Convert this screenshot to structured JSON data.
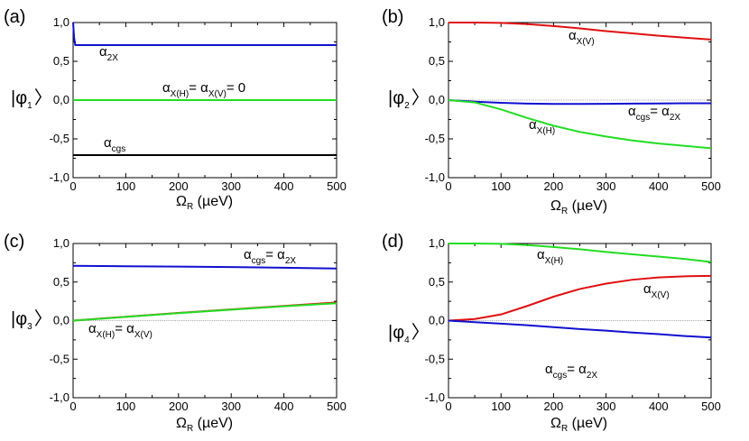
{
  "figure": {
    "panels": [
      {
        "panel_label": "(a)",
        "ylabel": {
          "prefix": "|φ",
          "sub": "1",
          "suffix": "〉"
        },
        "xlabel": {
          "prefix": "Ω",
          "sub": "R",
          "suffix": " (µeV)"
        },
        "annotations": [
          {
            "parts": [
              [
                "α",
                ""
              ],
              [
                "2X",
                "sub"
              ]
            ]
          },
          {
            "parts": [
              [
                "α",
                ""
              ],
              [
                "X(H)",
                "sub"
              ],
              [
                "= α",
                ""
              ],
              [
                "X(V)",
                "sub"
              ],
              [
                "= 0",
                ""
              ]
            ]
          },
          {
            "parts": [
              [
                "α",
                ""
              ],
              [
                "cgs",
                "sub"
              ]
            ]
          }
        ]
      },
      {
        "panel_label": "(b)",
        "ylabel": {
          "prefix": "|φ",
          "sub": "2",
          "suffix": "〉"
        },
        "xlabel": {
          "prefix": "Ω",
          "sub": "R",
          "suffix": " (µeV)"
        },
        "annotations": [
          {
            "parts": [
              [
                "α",
                ""
              ],
              [
                "X(V)",
                "sub"
              ]
            ]
          },
          {
            "parts": [
              [
                "α",
                ""
              ],
              [
                "cgs",
                "sub"
              ],
              [
                "= α",
                ""
              ],
              [
                "2X",
                "sub"
              ]
            ]
          },
          {
            "parts": [
              [
                "α",
                ""
              ],
              [
                "X(H)",
                "sub"
              ]
            ]
          }
        ]
      },
      {
        "panel_label": "(c)",
        "ylabel": {
          "prefix": "|φ",
          "sub": "3",
          "suffix": "〉"
        },
        "xlabel": {
          "prefix": "Ω",
          "sub": "R",
          "suffix": " (µeV)"
        },
        "annotations": [
          {
            "parts": [
              [
                "α",
                ""
              ],
              [
                "cgs",
                "sub"
              ],
              [
                "= α",
                ""
              ],
              [
                "2X",
                "sub"
              ]
            ]
          },
          {
            "parts": [
              [
                "α",
                ""
              ],
              [
                "X(H)",
                "sub"
              ],
              [
                "= α",
                ""
              ],
              [
                "X(V)",
                "sub"
              ]
            ]
          }
        ]
      },
      {
        "panel_label": "(d)",
        "ylabel": {
          "prefix": "|φ",
          "sub": "4",
          "suffix": "〉"
        },
        "xlabel": {
          "prefix": "Ω",
          "sub": "R",
          "suffix": " (µeV)"
        },
        "annotations": [
          {
            "parts": [
              [
                "α",
                ""
              ],
              [
                "X(H)",
                "sub"
              ]
            ]
          },
          {
            "parts": [
              [
                "α",
                ""
              ],
              [
                "X(V)",
                "sub"
              ]
            ]
          },
          {
            "parts": [
              [
                "α",
                ""
              ],
              [
                "cgs",
                "sub"
              ],
              [
                "= α",
                ""
              ],
              [
                "2X",
                "sub"
              ]
            ]
          }
        ]
      }
    ]
  },
  "chart_data": [
    {
      "type": "line",
      "xlim": [
        0,
        500
      ],
      "ylim": [
        -1,
        1
      ],
      "xticks": [
        "0",
        "100",
        "200",
        "300",
        "400",
        "500"
      ],
      "yticks": [
        "-1,0",
        "-0,5",
        "0,0",
        "0,5",
        "1,0"
      ],
      "zero_line": false,
      "series": [
        {
          "name": "α2X",
          "color": "#1010d0",
          "x": [
            0,
            2,
            4,
            100,
            200,
            300,
            400,
            500
          ],
          "y": [
            1.0,
            0.8,
            0.71,
            0.71,
            0.71,
            0.71,
            0.71,
            0.71
          ]
        },
        {
          "name": "αX(H) = αX(V) = 0",
          "color": "#22dd22",
          "x": [
            0,
            100,
            200,
            300,
            400,
            500
          ],
          "y": [
            0,
            0,
            0,
            0,
            0,
            0
          ]
        },
        {
          "name": "αcgs",
          "color": "#000000",
          "x": [
            0,
            100,
            200,
            300,
            400,
            500
          ],
          "y": [
            -0.71,
            -0.71,
            -0.71,
            -0.71,
            -0.71,
            -0.71
          ]
        }
      ]
    },
    {
      "type": "line",
      "xlim": [
        0,
        500
      ],
      "ylim": [
        -1,
        1
      ],
      "xticks": [
        "0",
        "100",
        "200",
        "300",
        "400",
        "500"
      ],
      "yticks": [
        "-1,0",
        "-0,5",
        "0,0",
        "0,5",
        "1,0"
      ],
      "zero_line": true,
      "series": [
        {
          "name": "αX(V)",
          "color": "#e01010",
          "x": [
            0,
            50,
            100,
            150,
            200,
            250,
            300,
            350,
            400,
            450,
            500
          ],
          "y": [
            1.0,
            1.0,
            0.995,
            0.98,
            0.955,
            0.925,
            0.89,
            0.86,
            0.83,
            0.805,
            0.78
          ]
        },
        {
          "name": "αcgs = α2X",
          "color": "#1010d0",
          "x": [
            0,
            50,
            100,
            150,
            200,
            250,
            300,
            350,
            400,
            450,
            500
          ],
          "y": [
            0,
            -0.02,
            -0.035,
            -0.045,
            -0.05,
            -0.05,
            -0.048,
            -0.045,
            -0.043,
            -0.041,
            -0.04
          ]
        },
        {
          "name": "αX(H)",
          "color": "#22dd22",
          "x": [
            0,
            50,
            100,
            150,
            200,
            250,
            300,
            350,
            400,
            450,
            500
          ],
          "y": [
            0,
            -0.03,
            -0.12,
            -0.23,
            -0.33,
            -0.41,
            -0.47,
            -0.52,
            -0.56,
            -0.59,
            -0.62
          ]
        }
      ]
    },
    {
      "type": "line",
      "xlim": [
        0,
        500
      ],
      "ylim": [
        -1,
        1
      ],
      "xticks": [
        "0",
        "100",
        "200",
        "300",
        "400",
        "500"
      ],
      "yticks": [
        "-1,0",
        "-0,5",
        "0,0",
        "0,5",
        "1,0"
      ],
      "zero_line": true,
      "series": [
        {
          "name": "αcgs = α2X",
          "color": "#1010d0",
          "x": [
            0,
            100,
            200,
            300,
            400,
            500
          ],
          "y": [
            0.71,
            0.705,
            0.7,
            0.695,
            0.685,
            0.675
          ]
        },
        {
          "name": "αX(H)",
          "color": "#e01010",
          "x": [
            0,
            100,
            200,
            300,
            400,
            500
          ],
          "y": [
            0,
            0.05,
            0.1,
            0.145,
            0.19,
            0.235
          ]
        },
        {
          "name": "αX(V)",
          "color": "#22dd22",
          "x": [
            0,
            100,
            200,
            300,
            400,
            500
          ],
          "y": [
            0,
            0.048,
            0.097,
            0.142,
            0.185,
            0.225
          ]
        }
      ]
    },
    {
      "type": "line",
      "xlim": [
        0,
        500
      ],
      "ylim": [
        -1,
        1
      ],
      "xticks": [
        "0",
        "100",
        "200",
        "300",
        "400",
        "500"
      ],
      "yticks": [
        "-1,0",
        "-0,5",
        "0,0",
        "0,5",
        "1,0"
      ],
      "zero_line": true,
      "series": [
        {
          "name": "αX(H)",
          "color": "#22dd22",
          "x": [
            0,
            50,
            100,
            150,
            200,
            250,
            300,
            350,
            400,
            450,
            500
          ],
          "y": [
            1.0,
            1.0,
            0.995,
            0.98,
            0.955,
            0.925,
            0.89,
            0.86,
            0.83,
            0.8,
            0.76
          ]
        },
        {
          "name": "αX(V)",
          "color": "#e01010",
          "x": [
            0,
            50,
            100,
            150,
            200,
            250,
            300,
            350,
            400,
            450,
            500
          ],
          "y": [
            0,
            0.02,
            0.08,
            0.19,
            0.31,
            0.41,
            0.48,
            0.53,
            0.56,
            0.575,
            0.58
          ]
        },
        {
          "name": "αcgs = α2X",
          "color": "#1010d0",
          "x": [
            0,
            50,
            100,
            150,
            200,
            250,
            300,
            350,
            400,
            450,
            500
          ],
          "y": [
            0,
            -0.02,
            -0.04,
            -0.06,
            -0.085,
            -0.11,
            -0.13,
            -0.155,
            -0.175,
            -0.2,
            -0.22
          ]
        }
      ]
    }
  ]
}
